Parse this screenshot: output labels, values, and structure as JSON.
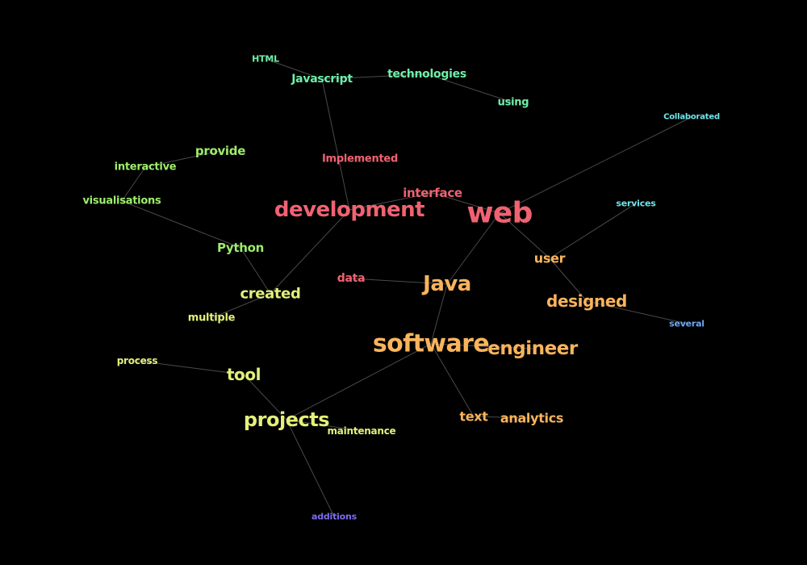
{
  "words": [
    {
      "id": "web",
      "text": "web",
      "color": "#f06272"
    },
    {
      "id": "development",
      "text": "development",
      "color": "#f06272"
    },
    {
      "id": "interface",
      "text": "interface",
      "color": "#f06272"
    },
    {
      "id": "implemented",
      "text": "Implemented",
      "color": "#f06272"
    },
    {
      "id": "data",
      "text": "data",
      "color": "#f06272"
    },
    {
      "id": "software",
      "text": "software",
      "color": "#f9b45c"
    },
    {
      "id": "java",
      "text": "Java",
      "color": "#f9b45c"
    },
    {
      "id": "engineer",
      "text": "engineer",
      "color": "#f9b45c"
    },
    {
      "id": "user",
      "text": "user",
      "color": "#f9b45c"
    },
    {
      "id": "designed",
      "text": "designed",
      "color": "#f9b45c"
    },
    {
      "id": "text",
      "text": "text",
      "color": "#f9b45c"
    },
    {
      "id": "analytics",
      "text": "analytics",
      "color": "#f9b45c"
    },
    {
      "id": "created",
      "text": "created",
      "color": "#e3f07a"
    },
    {
      "id": "multiple",
      "text": "multiple",
      "color": "#e3f07a"
    },
    {
      "id": "tool",
      "text": "tool",
      "color": "#e3f07a"
    },
    {
      "id": "process",
      "text": "process",
      "color": "#e3f07a"
    },
    {
      "id": "projects",
      "text": "projects",
      "color": "#e3f07a"
    },
    {
      "id": "maintenance",
      "text": "maintenance",
      "color": "#e3f07a"
    },
    {
      "id": "python",
      "text": "Python",
      "color": "#9ded6a"
    },
    {
      "id": "provide",
      "text": "provide",
      "color": "#9ded6a"
    },
    {
      "id": "interactive",
      "text": "interactive",
      "color": "#9ded6a"
    },
    {
      "id": "visualisations",
      "text": "visualisations",
      "color": "#9ded6a"
    },
    {
      "id": "html",
      "text": "HTML",
      "color": "#6ef0a8"
    },
    {
      "id": "javascript",
      "text": "Javascript",
      "color": "#6ef0a8"
    },
    {
      "id": "technologies",
      "text": "technologies",
      "color": "#6ef0a8"
    },
    {
      "id": "using",
      "text": "using",
      "color": "#6ef0a8"
    },
    {
      "id": "collaborated",
      "text": "Collaborated",
      "color": "#6fe6ea"
    },
    {
      "id": "services",
      "text": "services",
      "color": "#6fe6ea"
    },
    {
      "id": "several",
      "text": "several",
      "color": "#6da8f2"
    },
    {
      "id": "additions",
      "text": "additions",
      "color": "#7c6df2"
    }
  ],
  "edges": [
    [
      "html",
      "javascript"
    ],
    [
      "javascript",
      "technologies"
    ],
    [
      "technologies",
      "using"
    ],
    [
      "javascript",
      "development"
    ],
    [
      "development",
      "created"
    ],
    [
      "development",
      "interface"
    ],
    [
      "interface",
      "web"
    ],
    [
      "web",
      "collaborated"
    ],
    [
      "web",
      "user"
    ],
    [
      "web",
      "java"
    ],
    [
      "user",
      "services"
    ],
    [
      "user",
      "designed"
    ],
    [
      "designed",
      "several"
    ],
    [
      "java",
      "data"
    ],
    [
      "java",
      "software"
    ],
    [
      "software",
      "engineer"
    ],
    [
      "software",
      "text"
    ],
    [
      "text",
      "analytics"
    ],
    [
      "software",
      "projects"
    ],
    [
      "projects",
      "tool"
    ],
    [
      "projects",
      "maintenance"
    ],
    [
      "projects",
      "additions"
    ],
    [
      "tool",
      "process"
    ],
    [
      "created",
      "python"
    ],
    [
      "created",
      "multiple"
    ],
    [
      "python",
      "visualisations"
    ],
    [
      "visualisations",
      "interactive"
    ],
    [
      "interactive",
      "provide"
    ]
  ]
}
